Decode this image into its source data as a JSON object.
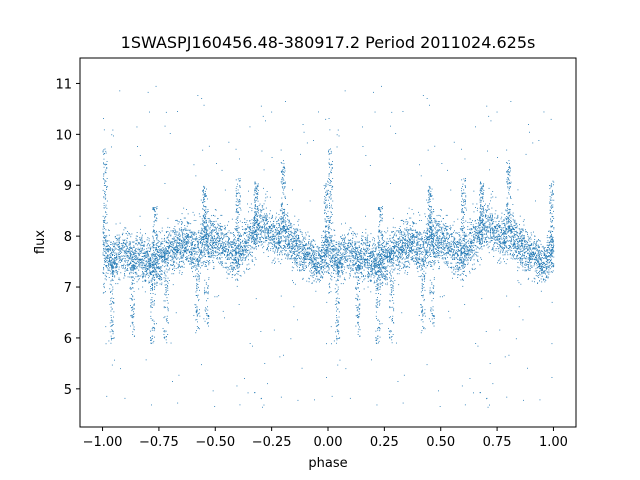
{
  "chart_data": {
    "type": "scatter",
    "title": "1SWASPJ160456.48-380917.2 Period 2011024.625s",
    "xlabel": "phase",
    "ylabel": "flux",
    "xlim": [
      -1.1,
      1.1
    ],
    "ylim": [
      4.25,
      11.5
    ],
    "x_ticks": [
      -1.0,
      -0.75,
      -0.5,
      -0.25,
      0.0,
      0.25,
      0.5,
      0.75,
      1.0
    ],
    "x_tick_labels": [
      "−1.00",
      "−0.75",
      "−0.50",
      "−0.25",
      "0.00",
      "0.25",
      "0.50",
      "0.75",
      "1.00"
    ],
    "y_ticks": [
      5,
      6,
      7,
      8,
      9,
      10,
      11
    ],
    "y_tick_labels": [
      "5",
      "6",
      "7",
      "8",
      "9",
      "10",
      "11"
    ],
    "grid": false,
    "point_color": "#1f77b4",
    "profile": {
      "phase": [
        0.0,
        0.02,
        0.04,
        0.06,
        0.08,
        0.1,
        0.12,
        0.14,
        0.16,
        0.18,
        0.2,
        0.22,
        0.24,
        0.26,
        0.28,
        0.3,
        0.32,
        0.34,
        0.36,
        0.38,
        0.4,
        0.42,
        0.44,
        0.46,
        0.48,
        0.5,
        0.52,
        0.54,
        0.56,
        0.58,
        0.6,
        0.62,
        0.64,
        0.66,
        0.68,
        0.7,
        0.72,
        0.74,
        0.76,
        0.78,
        0.8,
        0.82,
        0.84,
        0.86,
        0.88,
        0.9,
        0.92,
        0.94,
        0.96,
        0.98,
        1.0
      ],
      "median_flux": [
        7.7,
        7.6,
        7.5,
        7.6,
        7.7,
        7.7,
        7.6,
        7.5,
        7.6,
        7.5,
        7.5,
        7.4,
        7.5,
        7.6,
        7.7,
        7.7,
        7.8,
        7.8,
        7.9,
        7.9,
        7.8,
        7.7,
        7.9,
        8.0,
        7.9,
        7.9,
        7.9,
        7.8,
        7.7,
        7.7,
        7.6,
        7.8,
        7.9,
        8.0,
        8.1,
        8.2,
        8.2,
        8.1,
        8.0,
        8.0,
        8.1,
        8.0,
        7.9,
        7.8,
        7.7,
        7.7,
        7.6,
        7.5,
        7.5,
        7.6,
        7.7
      ],
      "spread": [
        0.9,
        0.5,
        0.5,
        0.5,
        0.5,
        0.5,
        0.5,
        0.5,
        0.5,
        0.5,
        0.5,
        0.5,
        0.5,
        0.5,
        0.5,
        0.5,
        0.5,
        0.5,
        0.5,
        0.5,
        0.6,
        0.6,
        0.6,
        0.5,
        0.5,
        0.5,
        0.5,
        0.5,
        0.5,
        0.5,
        0.5,
        0.5,
        0.6,
        0.6,
        0.5,
        0.5,
        0.5,
        0.5,
        0.5,
        0.5,
        0.6,
        0.5,
        0.5,
        0.5,
        0.5,
        0.5,
        0.5,
        0.5,
        0.5,
        0.5,
        0.6
      ]
    },
    "flares": [
      {
        "phase": 0.01,
        "flux_max": 9.8
      },
      {
        "phase": 0.23,
        "flux_max": 8.6
      },
      {
        "phase": 0.45,
        "flux_max": 9.0
      },
      {
        "phase": 0.6,
        "flux_max": 9.2
      },
      {
        "phase": 0.68,
        "flux_max": 9.1
      },
      {
        "phase": 0.8,
        "flux_max": 9.5
      },
      {
        "phase": 0.99,
        "flux_max": 9.1
      }
    ],
    "dips": [
      {
        "phase": 0.04,
        "flux_min": 5.9
      },
      {
        "phase": 0.13,
        "flux_min": 6.0
      },
      {
        "phase": 0.22,
        "flux_min": 5.9
      },
      {
        "phase": 0.28,
        "flux_min": 5.9
      },
      {
        "phase": 0.42,
        "flux_min": 6.1
      },
      {
        "phase": 0.46,
        "flux_min": 6.2
      }
    ]
  }
}
